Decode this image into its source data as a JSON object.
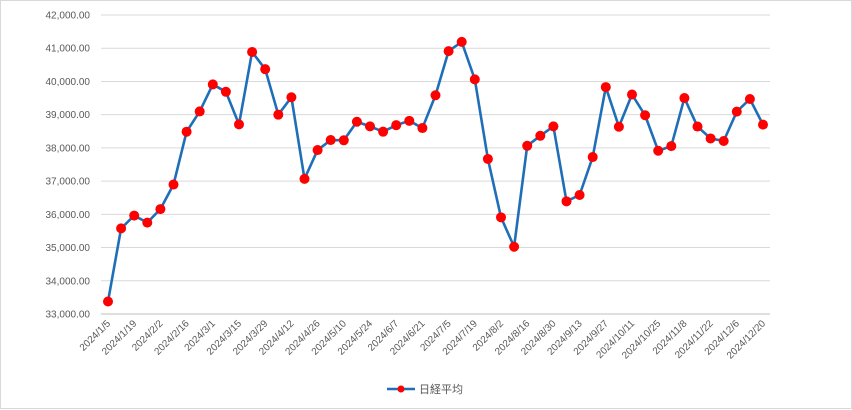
{
  "chart_data": {
    "type": "line",
    "title": "",
    "xlabel": "",
    "ylabel": "",
    "ylim": [
      33000,
      42000
    ],
    "yticks": [
      33000,
      34000,
      35000,
      36000,
      37000,
      38000,
      39000,
      40000,
      41000,
      42000
    ],
    "ytick_labels": [
      "33,000.00",
      "34,000.00",
      "35,000.00",
      "36,000.00",
      "37,000.00",
      "38,000.00",
      "39,000.00",
      "40,000.00",
      "41,000.00",
      "42,000.00"
    ],
    "grid": "horizontal",
    "legend_position": "bottom",
    "x": [
      "2024/1/5",
      "2024/1/12",
      "2024/1/19",
      "2024/1/26",
      "2024/2/2",
      "2024/2/9",
      "2024/2/16",
      "2024/2/23",
      "2024/3/1",
      "2024/3/8",
      "2024/3/15",
      "2024/3/22",
      "2024/3/29",
      "2024/4/5",
      "2024/4/12",
      "2024/4/19",
      "2024/4/26",
      "2024/5/3",
      "2024/5/10",
      "2024/5/17",
      "2024/5/24",
      "2024/5/31",
      "2024/6/7",
      "2024/6/14",
      "2024/6/21",
      "2024/6/28",
      "2024/7/5",
      "2024/7/12",
      "2024/7/19",
      "2024/7/26",
      "2024/8/2",
      "2024/8/9",
      "2024/8/16",
      "2024/8/23",
      "2024/8/30",
      "2024/9/6",
      "2024/9/13",
      "2024/9/20",
      "2024/9/27",
      "2024/10/4",
      "2024/10/11",
      "2024/10/18",
      "2024/10/25",
      "2024/11/1",
      "2024/11/8",
      "2024/11/15",
      "2024/11/22",
      "2024/11/29",
      "2024/12/6",
      "2024/12/13",
      "2024/12/20"
    ],
    "xtick_labels": [
      "2024/1/5",
      "2024/1/19",
      "2024/2/2",
      "2024/2/16",
      "2024/3/1",
      "2024/3/15",
      "2024/3/29",
      "2024/4/12",
      "2024/4/26",
      "2024/5/10",
      "2024/5/24",
      "2024/6/7",
      "2024/6/21",
      "2024/7/5",
      "2024/7/19",
      "2024/8/2",
      "2024/8/16",
      "2024/8/30",
      "2024/9/13",
      "2024/9/27",
      "2024/10/11",
      "2024/10/25",
      "2024/11/8",
      "2024/11/22",
      "2024/12/6",
      "2024/12/20"
    ],
    "series": [
      {
        "name": "日経平均",
        "line_color": "#1f6fb8",
        "marker_color": "#ff0000",
        "values": [
          33377,
          35577,
          35963,
          35751,
          36158,
          36897,
          38487,
          39098,
          39910,
          39688,
          38707,
          40888,
          40369,
          39000,
          39524,
          37068,
          37935,
          38236,
          38229,
          38787,
          38647,
          38488,
          38684,
          38815,
          38597,
          39584,
          40913,
          41191,
          40063,
          37667,
          35910,
          35025,
          38063,
          38364,
          38648,
          36391,
          36582,
          37724,
          39830,
          38636,
          39606,
          38982,
          37914,
          38054,
          39500,
          38642,
          38284,
          38208,
          39092,
          39471,
          38701
        ]
      }
    ]
  }
}
